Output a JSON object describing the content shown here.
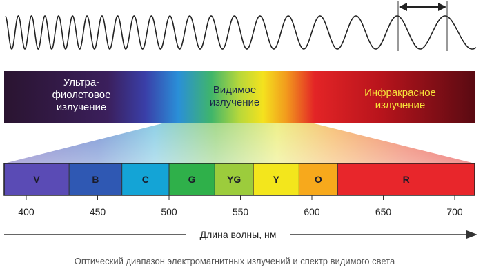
{
  "spectrum_bar": {
    "uv_line1": "Ультра-",
    "uv_line2": "фиолетовое",
    "uv_line3": "излучение",
    "visible_line1": "Видимое",
    "visible_line2": "излучение",
    "ir_line1": "Инфракрасное",
    "ir_line2": "излучение"
  },
  "bands": [
    {
      "label": "V",
      "from": 384,
      "to": 430,
      "color": "#5a4bb5"
    },
    {
      "label": "B",
      "from": 430,
      "to": 467,
      "color": "#2f58b3"
    },
    {
      "label": "C",
      "from": 467,
      "to": 500,
      "color": "#14a4d6"
    },
    {
      "label": "G",
      "from": 500,
      "to": 532,
      "color": "#2fb04a"
    },
    {
      "label": "YG",
      "from": 532,
      "to": 559,
      "color": "#9ccc3c"
    },
    {
      "label": "Y",
      "from": 559,
      "to": 591,
      "color": "#f3e61c"
    },
    {
      "label": "O",
      "from": 591,
      "to": 618,
      "color": "#f7a91c"
    },
    {
      "label": "R",
      "from": 618,
      "to": 716,
      "color": "#e8262b"
    }
  ],
  "axis": {
    "ticks": [
      400,
      450,
      500,
      550,
      600,
      650,
      700
    ],
    "label": "Длина волны, нм"
  },
  "caption": "Оптический диапазон электромагнитных излучений и спектр видимого света"
}
